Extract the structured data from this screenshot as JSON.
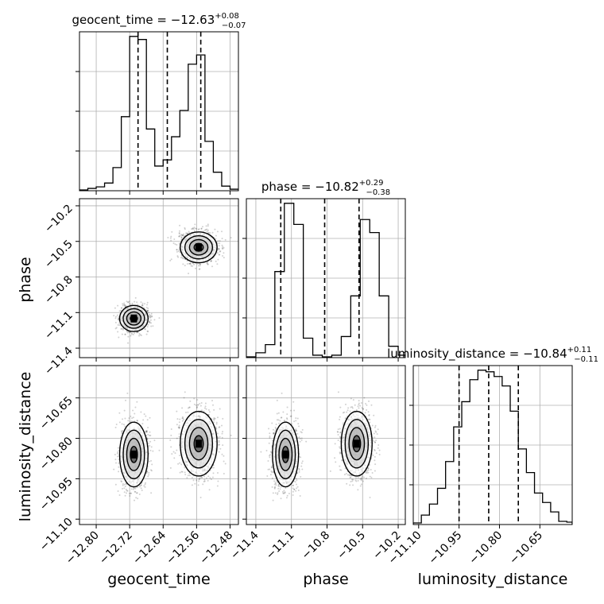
{
  "chart_data": {
    "type": "scatter",
    "parameters": [
      "geocent_time",
      "phase",
      "luminosity_distance"
    ],
    "titles": {
      "geocent_time": {
        "name": "geocent_time",
        "median": "−12.63",
        "plus": "+0.08",
        "minus": "−0.07"
      },
      "phase": {
        "name": "phase",
        "median": "−10.82",
        "plus": "+0.29",
        "minus": "−0.38"
      },
      "luminosity_distance": {
        "name": "luminosity_distance",
        "median": "−10.84",
        "plus": "+0.11",
        "minus": "−0.11"
      }
    },
    "axes": {
      "geocent_time": {
        "label": "geocent_time",
        "range": [
          -12.84,
          -12.46
        ],
        "ticks": [
          -12.8,
          -12.72,
          -12.64,
          -12.56,
          -12.48
        ],
        "tick_labels": [
          "−12.80",
          "−12.72",
          "−12.64",
          "−12.56",
          "−12.48"
        ]
      },
      "phase": {
        "label": "phase",
        "range": [
          -11.48,
          -10.14
        ],
        "ticks": [
          -11.4,
          -11.1,
          -10.8,
          -10.5,
          -10.2
        ],
        "tick_labels": [
          "−11.4",
          "−11.1",
          "−10.8",
          "−10.5",
          "−10.2"
        ]
      },
      "luminosity_distance": {
        "label": "luminosity_distance",
        "range": [
          -11.12,
          -10.53
        ],
        "ticks": [
          -11.1,
          -10.95,
          -10.8,
          -10.65
        ],
        "tick_labels": [
          "−11.10",
          "−10.95",
          "−10.80",
          "−10.65"
        ]
      }
    },
    "histograms": {
      "geocent_time": {
        "quantiles": [
          -12.7,
          -12.63,
          -12.55
        ],
        "bin_edges": [
          -12.84,
          -12.82,
          -12.8,
          -12.78,
          -12.76,
          -12.74,
          -12.72,
          -12.7,
          -12.68,
          -12.66,
          -12.64,
          -12.62,
          -12.6,
          -12.58,
          -12.56,
          -12.54,
          -12.52,
          -12.5,
          -12.48,
          -12.46
        ],
        "counts": [
          0.5,
          1.5,
          2.5,
          5,
          15,
          48,
          100,
          98,
          40,
          16,
          20,
          35,
          52,
          82,
          88,
          32,
          12,
          3,
          1
        ]
      },
      "phase": {
        "quantiles": [
          -11.19,
          -10.82,
          -10.53
        ],
        "bin_edges": [
          -11.48,
          -11.4,
          -11.32,
          -11.24,
          -11.16,
          -11.08,
          -11.0,
          -10.92,
          -10.84,
          -10.76,
          -10.68,
          -10.6,
          -10.52,
          -10.44,
          -10.36,
          -10.28,
          -10.2,
          -10.14
        ],
        "counts": [
          0.5,
          3,
          8,
          53,
          95,
          82,
          12,
          1.5,
          0.5,
          1.5,
          13,
          38,
          85,
          77,
          38,
          7,
          1.5
        ]
      },
      "luminosity_distance": {
        "quantiles": [
          -10.95,
          -10.84,
          -10.73
        ],
        "bin_edges": [
          -11.12,
          -11.09,
          -11.06,
          -11.03,
          -11.0,
          -10.97,
          -10.94,
          -10.91,
          -10.88,
          -10.85,
          -10.82,
          -10.79,
          -10.76,
          -10.73,
          -10.7,
          -10.67,
          -10.64,
          -10.61,
          -10.58,
          -10.55,
          -10.53
        ],
        "counts": [
          1,
          6,
          13,
          23,
          40,
          62,
          78,
          92,
          98,
          97,
          94,
          88,
          72,
          48,
          33,
          20,
          14,
          8,
          2,
          1.5
        ]
      }
    },
    "scatter_clusters": [
      {
        "center": {
          "geocent_time": -12.71,
          "phase": -11.15,
          "luminosity_distance": -10.86
        },
        "spread": {
          "geocent_time": 0.017,
          "phase": 0.055,
          "luminosity_distance": 0.06
        },
        "weight": 0.5
      },
      {
        "center": {
          "geocent_time": -12.555,
          "phase": -10.55,
          "luminosity_distance": -10.82
        },
        "spread": {
          "geocent_time": 0.022,
          "phase": 0.065,
          "luminosity_distance": 0.06
        },
        "weight": 0.5
      }
    ],
    "levels": [
      0.5,
      1.0,
      1.5,
      2.0
    ],
    "grid": true,
    "legend": "none"
  }
}
